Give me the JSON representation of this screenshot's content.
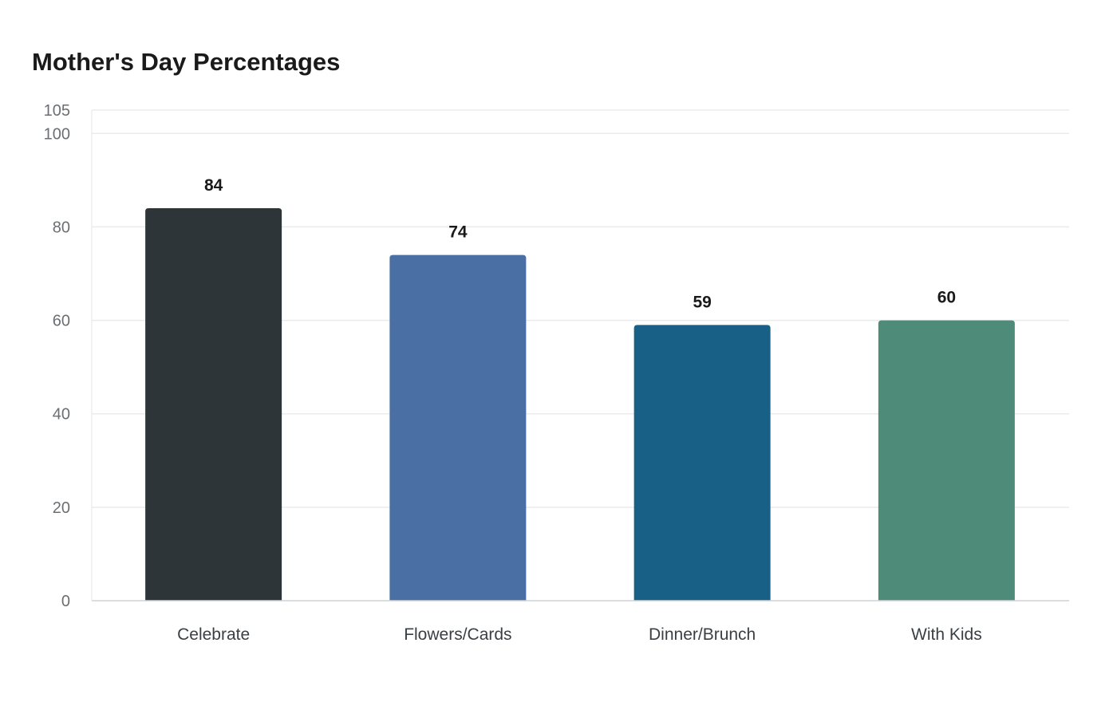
{
  "chart_data": {
    "type": "bar",
    "title": "Mother's Day Percentages",
    "xlabel": "",
    "ylabel": "",
    "categories": [
      "Celebrate",
      "Flowers/Cards",
      "Dinner/Brunch",
      "With Kids"
    ],
    "values": [
      84,
      74,
      59,
      60
    ],
    "colors": [
      "#2d3538",
      "#4a6fa5",
      "#196087",
      "#4e8b79"
    ],
    "ylim": [
      0,
      105
    ],
    "yticks": [
      0,
      20,
      40,
      60,
      80,
      100,
      105
    ],
    "grid": true,
    "data_labels": true
  }
}
